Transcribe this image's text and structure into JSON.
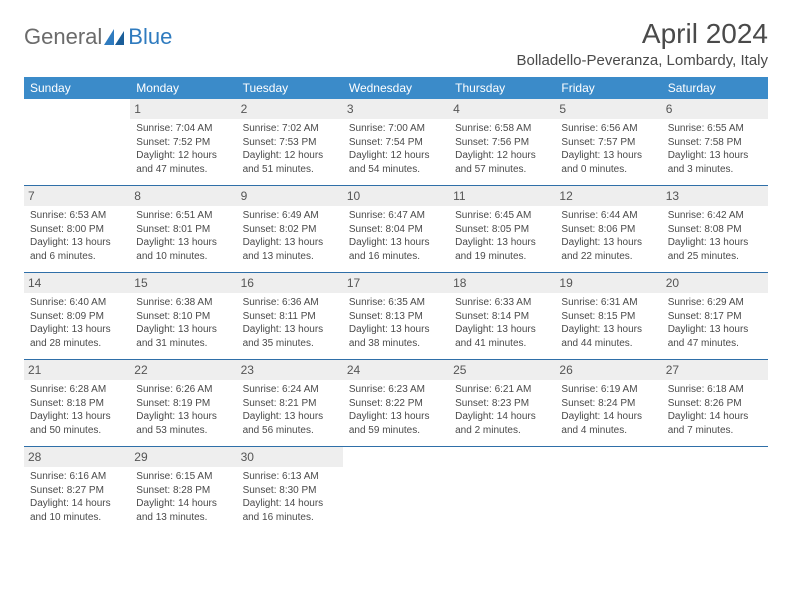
{
  "brand": {
    "part1": "General",
    "part2": "Blue"
  },
  "title": "April 2024",
  "location": "Bolladello-Peveranza, Lombardy, Italy",
  "dayHeaders": [
    "Sunday",
    "Monday",
    "Tuesday",
    "Wednesday",
    "Thursday",
    "Friday",
    "Saturday"
  ],
  "colors": {
    "header_bg": "#3b8bc9",
    "header_text": "#ffffff",
    "rule": "#2f6fa8",
    "daybar": "#eeeeee",
    "text": "#4a4a4a"
  },
  "weeks": [
    [
      {
        "n": "",
        "sr": "",
        "ss": "",
        "dl": ""
      },
      {
        "n": "1",
        "sr": "Sunrise: 7:04 AM",
        "ss": "Sunset: 7:52 PM",
        "dl": "Daylight: 12 hours and 47 minutes."
      },
      {
        "n": "2",
        "sr": "Sunrise: 7:02 AM",
        "ss": "Sunset: 7:53 PM",
        "dl": "Daylight: 12 hours and 51 minutes."
      },
      {
        "n": "3",
        "sr": "Sunrise: 7:00 AM",
        "ss": "Sunset: 7:54 PM",
        "dl": "Daylight: 12 hours and 54 minutes."
      },
      {
        "n": "4",
        "sr": "Sunrise: 6:58 AM",
        "ss": "Sunset: 7:56 PM",
        "dl": "Daylight: 12 hours and 57 minutes."
      },
      {
        "n": "5",
        "sr": "Sunrise: 6:56 AM",
        "ss": "Sunset: 7:57 PM",
        "dl": "Daylight: 13 hours and 0 minutes."
      },
      {
        "n": "6",
        "sr": "Sunrise: 6:55 AM",
        "ss": "Sunset: 7:58 PM",
        "dl": "Daylight: 13 hours and 3 minutes."
      }
    ],
    [
      {
        "n": "7",
        "sr": "Sunrise: 6:53 AM",
        "ss": "Sunset: 8:00 PM",
        "dl": "Daylight: 13 hours and 6 minutes."
      },
      {
        "n": "8",
        "sr": "Sunrise: 6:51 AM",
        "ss": "Sunset: 8:01 PM",
        "dl": "Daylight: 13 hours and 10 minutes."
      },
      {
        "n": "9",
        "sr": "Sunrise: 6:49 AM",
        "ss": "Sunset: 8:02 PM",
        "dl": "Daylight: 13 hours and 13 minutes."
      },
      {
        "n": "10",
        "sr": "Sunrise: 6:47 AM",
        "ss": "Sunset: 8:04 PM",
        "dl": "Daylight: 13 hours and 16 minutes."
      },
      {
        "n": "11",
        "sr": "Sunrise: 6:45 AM",
        "ss": "Sunset: 8:05 PM",
        "dl": "Daylight: 13 hours and 19 minutes."
      },
      {
        "n": "12",
        "sr": "Sunrise: 6:44 AM",
        "ss": "Sunset: 8:06 PM",
        "dl": "Daylight: 13 hours and 22 minutes."
      },
      {
        "n": "13",
        "sr": "Sunrise: 6:42 AM",
        "ss": "Sunset: 8:08 PM",
        "dl": "Daylight: 13 hours and 25 minutes."
      }
    ],
    [
      {
        "n": "14",
        "sr": "Sunrise: 6:40 AM",
        "ss": "Sunset: 8:09 PM",
        "dl": "Daylight: 13 hours and 28 minutes."
      },
      {
        "n": "15",
        "sr": "Sunrise: 6:38 AM",
        "ss": "Sunset: 8:10 PM",
        "dl": "Daylight: 13 hours and 31 minutes."
      },
      {
        "n": "16",
        "sr": "Sunrise: 6:36 AM",
        "ss": "Sunset: 8:11 PM",
        "dl": "Daylight: 13 hours and 35 minutes."
      },
      {
        "n": "17",
        "sr": "Sunrise: 6:35 AM",
        "ss": "Sunset: 8:13 PM",
        "dl": "Daylight: 13 hours and 38 minutes."
      },
      {
        "n": "18",
        "sr": "Sunrise: 6:33 AM",
        "ss": "Sunset: 8:14 PM",
        "dl": "Daylight: 13 hours and 41 minutes."
      },
      {
        "n": "19",
        "sr": "Sunrise: 6:31 AM",
        "ss": "Sunset: 8:15 PM",
        "dl": "Daylight: 13 hours and 44 minutes."
      },
      {
        "n": "20",
        "sr": "Sunrise: 6:29 AM",
        "ss": "Sunset: 8:17 PM",
        "dl": "Daylight: 13 hours and 47 minutes."
      }
    ],
    [
      {
        "n": "21",
        "sr": "Sunrise: 6:28 AM",
        "ss": "Sunset: 8:18 PM",
        "dl": "Daylight: 13 hours and 50 minutes."
      },
      {
        "n": "22",
        "sr": "Sunrise: 6:26 AM",
        "ss": "Sunset: 8:19 PM",
        "dl": "Daylight: 13 hours and 53 minutes."
      },
      {
        "n": "23",
        "sr": "Sunrise: 6:24 AM",
        "ss": "Sunset: 8:21 PM",
        "dl": "Daylight: 13 hours and 56 minutes."
      },
      {
        "n": "24",
        "sr": "Sunrise: 6:23 AM",
        "ss": "Sunset: 8:22 PM",
        "dl": "Daylight: 13 hours and 59 minutes."
      },
      {
        "n": "25",
        "sr": "Sunrise: 6:21 AM",
        "ss": "Sunset: 8:23 PM",
        "dl": "Daylight: 14 hours and 2 minutes."
      },
      {
        "n": "26",
        "sr": "Sunrise: 6:19 AM",
        "ss": "Sunset: 8:24 PM",
        "dl": "Daylight: 14 hours and 4 minutes."
      },
      {
        "n": "27",
        "sr": "Sunrise: 6:18 AM",
        "ss": "Sunset: 8:26 PM",
        "dl": "Daylight: 14 hours and 7 minutes."
      }
    ],
    [
      {
        "n": "28",
        "sr": "Sunrise: 6:16 AM",
        "ss": "Sunset: 8:27 PM",
        "dl": "Daylight: 14 hours and 10 minutes."
      },
      {
        "n": "29",
        "sr": "Sunrise: 6:15 AM",
        "ss": "Sunset: 8:28 PM",
        "dl": "Daylight: 14 hours and 13 minutes."
      },
      {
        "n": "30",
        "sr": "Sunrise: 6:13 AM",
        "ss": "Sunset: 8:30 PM",
        "dl": "Daylight: 14 hours and 16 minutes."
      },
      {
        "n": "",
        "sr": "",
        "ss": "",
        "dl": ""
      },
      {
        "n": "",
        "sr": "",
        "ss": "",
        "dl": ""
      },
      {
        "n": "",
        "sr": "",
        "ss": "",
        "dl": ""
      },
      {
        "n": "",
        "sr": "",
        "ss": "",
        "dl": ""
      }
    ]
  ]
}
